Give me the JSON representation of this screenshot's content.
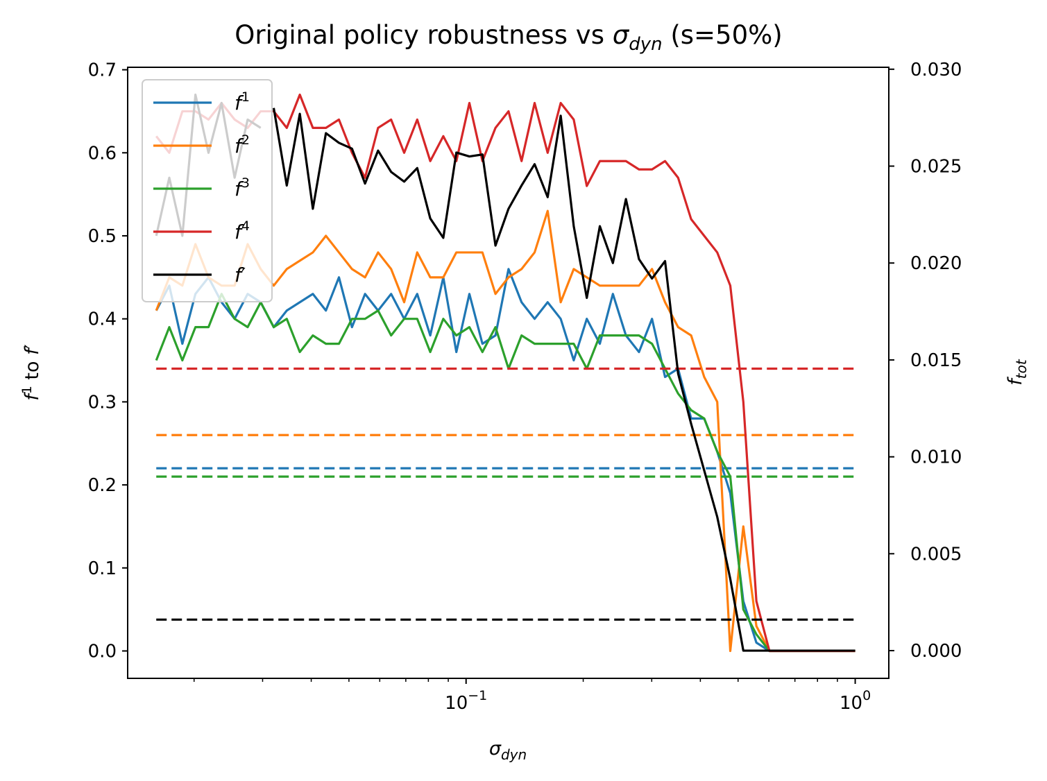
{
  "chart_data": {
    "type": "line",
    "title_parts": {
      "prefix": "Original policy robustness vs ",
      "sym": "σ",
      "sub": "dyn",
      "suffix": " (s=50%)"
    },
    "xlabel": {
      "sym": "σ",
      "sub": "dyn"
    },
    "ylabel_left": {
      "f": "f",
      "sup": "1",
      "mid": " to ",
      "f2": "f",
      "prime": "′"
    },
    "ylabel_right": {
      "f": "f",
      "sub": "tot"
    },
    "x_scale": "log",
    "xlim": [
      0.0135,
      1.22
    ],
    "ylim_left": [
      -0.033,
      0.703
    ],
    "ylim_right": [
      -0.00143,
      0.0301
    ],
    "x_ticks": [
      {
        "value": 0.1,
        "base": "10",
        "exp": "−1"
      },
      {
        "value": 1,
        "base": "10",
        "exp": "0"
      }
    ],
    "y_ticks_left": [
      "0.0",
      "0.1",
      "0.2",
      "0.3",
      "0.4",
      "0.5",
      "0.6",
      "0.7"
    ],
    "y_ticks_right": [
      "0.000",
      "0.005",
      "0.010",
      "0.015",
      "0.020",
      "0.025",
      "0.030"
    ],
    "legend_position": "top-left",
    "grid": false,
    "x": [
      0.01599,
      0.01727,
      0.01866,
      0.02016,
      0.02178,
      0.02353,
      0.02542,
      0.02746,
      0.02966,
      0.03204,
      0.03461,
      0.03739,
      0.04039,
      0.04363,
      0.04713,
      0.05091,
      0.055,
      0.05941,
      0.06418,
      0.06933,
      0.07489,
      0.0809,
      0.08739,
      0.09441,
      0.10198,
      0.11016,
      0.119,
      0.12855,
      0.13887,
      0.15001,
      0.16205,
      0.17506,
      0.1891,
      0.20428,
      0.22067,
      0.23838,
      0.25751,
      0.27818,
      0.3005,
      0.32461,
      0.35066,
      0.3788,
      0.4092,
      0.44203,
      0.47751,
      0.51583,
      0.55722,
      0.60194,
      0.65024,
      0.70242,
      0.75879,
      0.81968,
      0.88546,
      0.95652,
      1.0
    ],
    "series": [
      {
        "name": "f",
        "sup": "1",
        "axis": "left",
        "color": "#1f77b4",
        "values": [
          0.41,
          0.44,
          0.37,
          0.43,
          0.45,
          0.42,
          0.4,
          0.43,
          0.42,
          0.39,
          0.41,
          0.42,
          0.43,
          0.41,
          0.45,
          0.39,
          0.43,
          0.41,
          0.43,
          0.4,
          0.43,
          0.38,
          0.45,
          0.36,
          0.43,
          0.37,
          0.38,
          0.46,
          0.42,
          0.4,
          0.42,
          0.4,
          0.35,
          0.4,
          0.37,
          0.43,
          0.38,
          0.36,
          0.4,
          0.33,
          0.34,
          0.28,
          0.28,
          0.24,
          0.19,
          0.06,
          0.01,
          0.0,
          0.0,
          0.0,
          0.0,
          0.0,
          0.0,
          0.0,
          0.0
        ],
        "baseline": 0.22
      },
      {
        "name": "f",
        "sup": "2",
        "axis": "left",
        "color": "#ff7f0e",
        "values": [
          0.41,
          0.45,
          0.44,
          0.49,
          0.45,
          0.44,
          0.44,
          0.49,
          0.46,
          0.44,
          0.46,
          0.47,
          0.48,
          0.5,
          0.48,
          0.46,
          0.45,
          0.48,
          0.46,
          0.42,
          0.48,
          0.45,
          0.45,
          0.48,
          0.48,
          0.48,
          0.43,
          0.45,
          0.46,
          0.48,
          0.53,
          0.42,
          0.46,
          0.45,
          0.44,
          0.44,
          0.44,
          0.44,
          0.46,
          0.42,
          0.39,
          0.38,
          0.33,
          0.3,
          0.0,
          0.15,
          0.03,
          0.0,
          0.0,
          0.0,
          0.0,
          0.0,
          0.0,
          0.0,
          0.0
        ],
        "baseline": 0.26
      },
      {
        "name": "f",
        "sup": "3",
        "axis": "left",
        "color": "#2ca02c",
        "values": [
          0.35,
          0.39,
          0.35,
          0.39,
          0.39,
          0.43,
          0.4,
          0.39,
          0.42,
          0.39,
          0.4,
          0.36,
          0.38,
          0.37,
          0.37,
          0.4,
          0.4,
          0.41,
          0.38,
          0.4,
          0.4,
          0.36,
          0.4,
          0.38,
          0.39,
          0.36,
          0.39,
          0.34,
          0.38,
          0.37,
          0.37,
          0.37,
          0.37,
          0.34,
          0.38,
          0.38,
          0.38,
          0.38,
          0.37,
          0.34,
          0.31,
          0.29,
          0.28,
          0.24,
          0.21,
          0.05,
          0.02,
          0.0,
          0.0,
          0.0,
          0.0,
          0.0,
          0.0,
          0.0,
          0.0
        ],
        "baseline": 0.21
      },
      {
        "name": "f",
        "sup": "4",
        "axis": "left",
        "color": "#d62728",
        "values": [
          0.62,
          0.6,
          0.65,
          0.65,
          0.64,
          0.66,
          0.64,
          0.63,
          0.65,
          0.65,
          0.63,
          0.67,
          0.63,
          0.63,
          0.64,
          0.6,
          0.57,
          0.63,
          0.64,
          0.6,
          0.64,
          0.59,
          0.62,
          0.59,
          0.66,
          0.59,
          0.63,
          0.65,
          0.59,
          0.66,
          0.6,
          0.66,
          0.64,
          0.56,
          0.59,
          0.59,
          0.59,
          0.58,
          0.58,
          0.59,
          0.57,
          0.52,
          0.5,
          0.48,
          0.44,
          0.3,
          0.06,
          0.0,
          0.0,
          0.0,
          0.0,
          0.0,
          0.0,
          0.0,
          0.0
        ],
        "baseline": 0.34
      },
      {
        "name": "f",
        "sup": "′",
        "axis": "right",
        "color": "#000000",
        "values": [
          null,
          null,
          null,
          null,
          null,
          null,
          null,
          null,
          null,
          0.028,
          0.024,
          0.0277,
          0.0228,
          0.0267,
          0.0262,
          0.0259,
          0.0241,
          0.0258,
          0.0247,
          0.0242,
          0.0249,
          0.0223,
          0.0213,
          0.0257,
          0.0255,
          0.0256,
          0.0209,
          0.0228,
          0.024,
          0.0251,
          0.0234,
          0.0276,
          0.0219,
          0.0182,
          0.0219,
          0.02,
          0.0233,
          0.0202,
          0.0192,
          0.0201,
          0.0143,
          0.0117,
          0.0093,
          0.0069,
          0.0037,
          0.0,
          0.0,
          0.0,
          0.0,
          0.0,
          0.0,
          0.0,
          0.0,
          0.0,
          0.0
        ],
        "baseline": 0.0016
      },
      {
        "name": "",
        "sup": "",
        "axis": "left",
        "color": "#000000",
        "legend": false,
        "values": [
          0.5,
          0.57,
          0.5,
          0.67,
          0.6,
          0.66,
          0.57,
          0.64,
          0.63,
          null,
          null,
          null,
          null,
          null,
          null,
          null,
          null,
          null,
          null,
          null,
          null,
          null,
          null,
          null,
          null,
          null,
          null,
          null,
          null,
          null,
          null,
          null,
          null,
          null,
          null,
          null,
          null,
          null,
          null,
          null,
          null,
          null,
          null,
          null,
          null,
          null,
          null,
          null,
          null,
          null,
          null,
          null,
          null,
          null,
          null
        ]
      }
    ]
  }
}
